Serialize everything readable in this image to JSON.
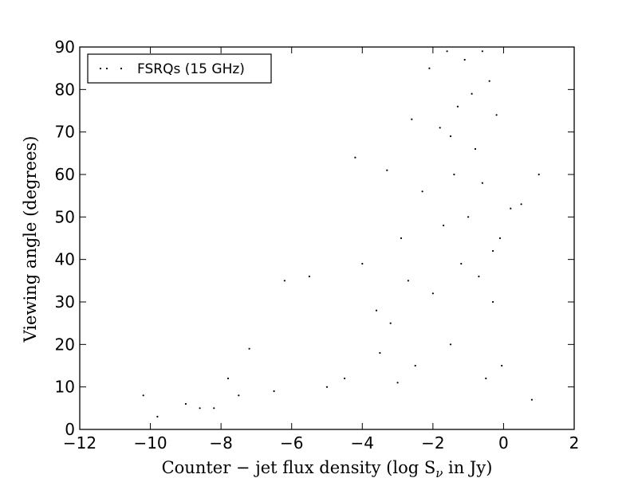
{
  "chart_data": {
    "type": "scatter",
    "xlabel": "Counter − jet flux density (log S",
    "xlabel_subscript": "ν",
    "xlabel_suffix": " in Jy)",
    "ylabel": "Viewing angle (degrees)",
    "xlim": [
      -12,
      2
    ],
    "ylim": [
      0,
      90
    ],
    "xticks": [
      -12,
      -10,
      -8,
      -6,
      -4,
      -2,
      0,
      2
    ],
    "yticks": [
      0,
      10,
      20,
      30,
      40,
      50,
      60,
      70,
      80,
      90
    ],
    "xtick_labels": [
      "−12",
      "−10",
      "−8",
      "−6",
      "−4",
      "−2",
      "0",
      "2"
    ],
    "ytick_labels": [
      "0",
      "10",
      "20",
      "30",
      "40",
      "50",
      "60",
      "70",
      "80",
      "90"
    ],
    "legend_position": "top-left",
    "grid": false,
    "marker_color": "#000000",
    "series": [
      {
        "name": "FSRQs (15 GHz)",
        "points": [
          [
            1.0,
            60
          ],
          [
            0.5,
            53
          ],
          [
            0.8,
            7
          ],
          [
            -10.2,
            8
          ],
          [
            -9.8,
            3
          ],
          [
            -9.0,
            6
          ],
          [
            -8.6,
            5
          ],
          [
            -7.8,
            12
          ],
          [
            -7.2,
            19
          ],
          [
            -6.2,
            35
          ],
          [
            -5.5,
            36
          ],
          [
            -4.2,
            64
          ],
          [
            -3.3,
            61
          ],
          [
            -2.6,
            73
          ],
          [
            -2.1,
            85
          ],
          [
            -1.6,
            89
          ],
          [
            -1.1,
            87
          ],
          [
            -0.6,
            89
          ],
          [
            -0.2,
            91
          ],
          [
            -0.4,
            82
          ],
          [
            -0.9,
            79
          ],
          [
            -1.3,
            76
          ],
          [
            -0.2,
            74
          ],
          [
            0.2,
            52
          ],
          [
            -0.1,
            45
          ],
          [
            -0.3,
            42
          ],
          [
            -1.8,
            71
          ],
          [
            -1.5,
            69
          ],
          [
            -0.8,
            66
          ],
          [
            -4.0,
            39
          ],
          [
            -3.6,
            28
          ],
          [
            -2.9,
            45
          ],
          [
            -2.3,
            56
          ],
          [
            -1.7,
            48
          ],
          [
            -1.2,
            39
          ],
          [
            -0.7,
            36
          ],
          [
            -0.3,
            30
          ],
          [
            -0.05,
            15
          ],
          [
            -0.5,
            12
          ],
          [
            -1.5,
            20
          ],
          [
            -2.5,
            15
          ],
          [
            -3.0,
            11
          ],
          [
            -3.5,
            18
          ],
          [
            -4.5,
            12
          ],
          [
            -5.0,
            10
          ],
          [
            -6.5,
            9
          ],
          [
            -7.5,
            8
          ],
          [
            -8.2,
            5
          ],
          [
            -2.0,
            32
          ],
          [
            -1.0,
            50
          ],
          [
            -0.6,
            58
          ],
          [
            -1.4,
            60
          ],
          [
            -2.7,
            35
          ],
          [
            -3.2,
            25
          ]
        ]
      }
    ]
  }
}
